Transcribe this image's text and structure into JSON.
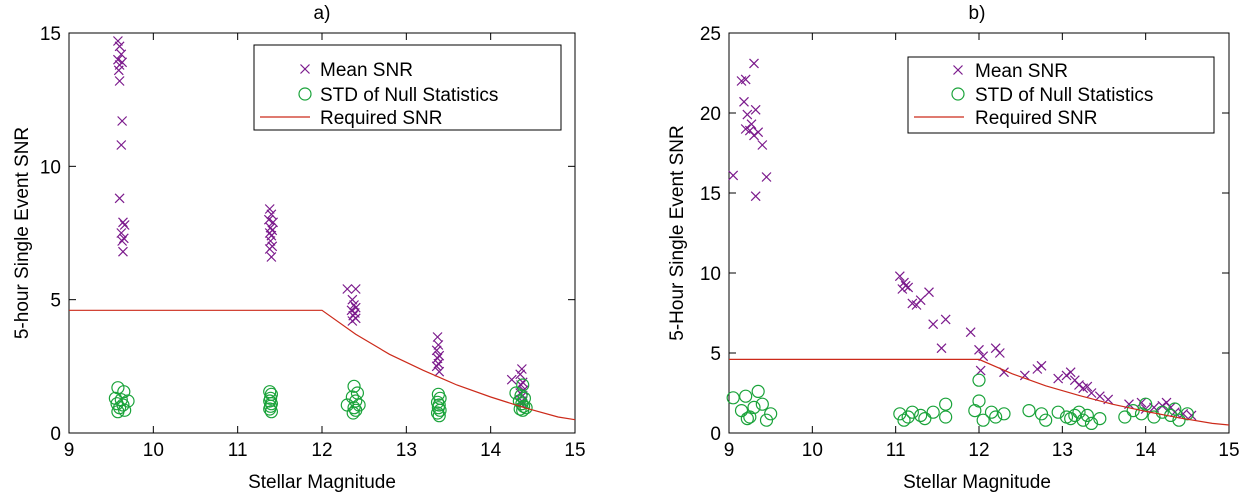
{
  "colors": {
    "mean": "#7b1a8c",
    "std": "#1aa33a",
    "req": "#cc2a1a"
  },
  "chart_data": [
    {
      "type": "scatter",
      "title": "a)",
      "xlabel": "Stellar Magnitude",
      "ylabel": "5-hour Single Event SNR",
      "xlim": [
        9,
        15
      ],
      "ylim": [
        0,
        15
      ],
      "xticks": [
        9,
        10,
        11,
        12,
        13,
        14,
        15
      ],
      "yticks": [
        0,
        5,
        10,
        15
      ],
      "grid": false,
      "legend_position": "top-right",
      "series": [
        {
          "name": "Mean SNR",
          "marker": "x",
          "points": [
            [
              9.58,
              14.7
            ],
            [
              9.6,
              14.5
            ],
            [
              9.62,
              14.2
            ],
            [
              9.58,
              14.0
            ],
            [
              9.6,
              13.8
            ],
            [
              9.63,
              13.9
            ],
            [
              9.59,
              13.6
            ],
            [
              9.6,
              13.2
            ],
            [
              9.63,
              11.7
            ],
            [
              9.62,
              10.8
            ],
            [
              9.6,
              8.8
            ],
            [
              9.64,
              7.9
            ],
            [
              9.66,
              7.8
            ],
            [
              9.62,
              7.5
            ],
            [
              9.65,
              7.3
            ],
            [
              9.63,
              7.2
            ],
            [
              9.64,
              6.8
            ],
            [
              11.38,
              8.4
            ],
            [
              11.4,
              8.2
            ],
            [
              11.37,
              8.0
            ],
            [
              11.42,
              7.9
            ],
            [
              11.39,
              7.7
            ],
            [
              11.41,
              7.6
            ],
            [
              11.38,
              7.5
            ],
            [
              11.4,
              7.4
            ],
            [
              11.39,
              7.2
            ],
            [
              11.41,
              7.0
            ],
            [
              11.38,
              6.9
            ],
            [
              11.4,
              6.6
            ],
            [
              12.3,
              5.4
            ],
            [
              12.4,
              5.4
            ],
            [
              12.36,
              5.0
            ],
            [
              12.38,
              4.8
            ],
            [
              12.4,
              4.7
            ],
            [
              12.35,
              4.6
            ],
            [
              12.39,
              4.5
            ],
            [
              12.37,
              4.4
            ],
            [
              12.4,
              4.3
            ],
            [
              12.36,
              4.2
            ],
            [
              13.37,
              3.6
            ],
            [
              13.38,
              3.3
            ],
            [
              13.36,
              3.1
            ],
            [
              13.39,
              2.9
            ],
            [
              13.37,
              2.8
            ],
            [
              13.38,
              2.6
            ],
            [
              13.36,
              2.5
            ],
            [
              13.39,
              2.3
            ],
            [
              14.25,
              2.0
            ],
            [
              14.37,
              2.4
            ],
            [
              14.35,
              2.2
            ],
            [
              14.38,
              1.9
            ],
            [
              14.36,
              1.8
            ],
            [
              14.39,
              1.6
            ],
            [
              14.35,
              1.5
            ],
            [
              14.38,
              1.4
            ],
            [
              14.37,
              1.2
            ],
            [
              14.36,
              1.1
            ]
          ]
        },
        {
          "name": "STD of Null Statistics",
          "marker": "o",
          "points": [
            [
              9.58,
              1.7
            ],
            [
              9.65,
              1.55
            ],
            [
              9.55,
              1.3
            ],
            [
              9.62,
              1.25
            ],
            [
              9.7,
              1.2
            ],
            [
              9.57,
              1.1
            ],
            [
              9.64,
              1.05
            ],
            [
              9.6,
              0.95
            ],
            [
              9.66,
              0.85
            ],
            [
              9.58,
              0.8
            ],
            [
              11.38,
              1.55
            ],
            [
              11.4,
              1.45
            ],
            [
              11.39,
              1.3
            ],
            [
              11.38,
              1.2
            ],
            [
              11.4,
              1.1
            ],
            [
              11.39,
              1.0
            ],
            [
              11.38,
              0.9
            ],
            [
              11.4,
              0.8
            ],
            [
              12.38,
              1.75
            ],
            [
              12.42,
              1.5
            ],
            [
              12.36,
              1.35
            ],
            [
              12.4,
              1.2
            ],
            [
              12.3,
              1.05
            ],
            [
              12.44,
              1.05
            ],
            [
              12.38,
              0.95
            ],
            [
              12.4,
              0.85
            ],
            [
              12.37,
              0.75
            ],
            [
              13.38,
              1.45
            ],
            [
              13.4,
              1.3
            ],
            [
              13.37,
              1.15
            ],
            [
              13.39,
              1.05
            ],
            [
              13.38,
              0.95
            ],
            [
              13.4,
              0.85
            ],
            [
              13.37,
              0.75
            ],
            [
              13.39,
              0.65
            ],
            [
              14.3,
              1.5
            ],
            [
              14.38,
              1.8
            ],
            [
              14.36,
              1.4
            ],
            [
              14.4,
              1.3
            ],
            [
              14.34,
              1.2
            ],
            [
              14.37,
              1.1
            ],
            [
              14.39,
              1.0
            ],
            [
              14.35,
              0.9
            ],
            [
              14.38,
              0.85
            ],
            [
              14.42,
              0.95
            ]
          ]
        },
        {
          "name": "Required SNR",
          "marker": "line",
          "points": [
            [
              9.0,
              4.6
            ],
            [
              12.0,
              4.6
            ],
            [
              12.4,
              3.7
            ],
            [
              12.8,
              2.95
            ],
            [
              13.2,
              2.35
            ],
            [
              13.6,
              1.8
            ],
            [
              14.0,
              1.35
            ],
            [
              14.4,
              0.95
            ],
            [
              14.8,
              0.6
            ],
            [
              15.0,
              0.5
            ]
          ]
        }
      ]
    },
    {
      "type": "scatter",
      "title": "b)",
      "xlabel": "Stellar Magnitude",
      "ylabel": "5-Hour Single Event SNR",
      "xlim": [
        9,
        15
      ],
      "ylim": [
        0,
        25
      ],
      "xticks": [
        9,
        10,
        11,
        12,
        13,
        14,
        15
      ],
      "yticks": [
        0,
        5,
        10,
        15,
        20,
        25
      ],
      "grid": false,
      "legend_position": "top-right",
      "series": [
        {
          "name": "Mean SNR",
          "marker": "x",
          "points": [
            [
              9.05,
              16.1
            ],
            [
              9.15,
              22.0
            ],
            [
              9.2,
              22.1
            ],
            [
              9.3,
              23.1
            ],
            [
              9.18,
              20.7
            ],
            [
              9.22,
              19.9
            ],
            [
              9.27,
              19.3
            ],
            [
              9.32,
              20.2
            ],
            [
              9.25,
              18.9
            ],
            [
              9.2,
              19.0
            ],
            [
              9.3,
              18.6
            ],
            [
              9.35,
              18.8
            ],
            [
              9.4,
              18.0
            ],
            [
              9.32,
              14.8
            ],
            [
              9.45,
              16.0
            ],
            [
              11.05,
              9.8
            ],
            [
              11.1,
              9.4
            ],
            [
              11.12,
              9.2
            ],
            [
              11.15,
              9.1
            ],
            [
              11.08,
              9.0
            ],
            [
              11.2,
              8.1
            ],
            [
              11.25,
              8.0
            ],
            [
              11.3,
              8.3
            ],
            [
              11.4,
              8.8
            ],
            [
              11.45,
              6.8
            ],
            [
              11.6,
              7.1
            ],
            [
              11.55,
              5.3
            ],
            [
              11.9,
              6.3
            ],
            [
              12.0,
              5.2
            ],
            [
              12.05,
              4.8
            ],
            [
              12.2,
              5.3
            ],
            [
              12.25,
              5.0
            ],
            [
              12.02,
              3.9
            ],
            [
              12.3,
              3.8
            ],
            [
              12.55,
              3.6
            ],
            [
              12.7,
              4.0
            ],
            [
              12.75,
              4.2
            ],
            [
              12.95,
              3.4
            ],
            [
              13.05,
              3.6
            ],
            [
              13.1,
              3.8
            ],
            [
              13.15,
              3.3
            ],
            [
              13.2,
              3.0
            ],
            [
              13.25,
              2.8
            ],
            [
              13.3,
              2.9
            ],
            [
              13.35,
              2.5
            ],
            [
              13.45,
              2.3
            ],
            [
              13.55,
              2.1
            ],
            [
              13.8,
              1.8
            ],
            [
              13.95,
              1.9
            ],
            [
              14.0,
              1.5
            ],
            [
              14.1,
              1.6
            ],
            [
              14.2,
              1.7
            ],
            [
              14.25,
              1.9
            ],
            [
              14.3,
              1.6
            ],
            [
              14.35,
              1.3
            ],
            [
              14.45,
              1.2
            ],
            [
              14.55,
              1.1
            ]
          ]
        },
        {
          "name": "STD of Null Statistics",
          "marker": "o",
          "points": [
            [
              9.05,
              2.2
            ],
            [
              9.15,
              1.4
            ],
            [
              9.2,
              2.3
            ],
            [
              9.25,
              1.0
            ],
            [
              9.3,
              1.6
            ],
            [
              9.35,
              2.6
            ],
            [
              9.4,
              1.8
            ],
            [
              9.45,
              0.8
            ],
            [
              9.5,
              1.2
            ],
            [
              9.22,
              0.9
            ],
            [
              11.05,
              1.2
            ],
            [
              11.1,
              0.8
            ],
            [
              11.15,
              1.0
            ],
            [
              11.2,
              1.3
            ],
            [
              11.3,
              1.1
            ],
            [
              11.35,
              0.9
            ],
            [
              11.45,
              1.3
            ],
            [
              11.6,
              1.8
            ],
            [
              11.6,
              1.0
            ],
            [
              11.95,
              1.4
            ],
            [
              12.0,
              2.0
            ],
            [
              12.0,
              3.3
            ],
            [
              12.05,
              0.8
            ],
            [
              12.15,
              1.3
            ],
            [
              12.2,
              1.0
            ],
            [
              12.3,
              1.2
            ],
            [
              12.6,
              1.4
            ],
            [
              12.75,
              1.2
            ],
            [
              12.8,
              0.8
            ],
            [
              12.95,
              1.3
            ],
            [
              13.05,
              1.0
            ],
            [
              13.1,
              0.9
            ],
            [
              13.15,
              1.1
            ],
            [
              13.2,
              1.3
            ],
            [
              13.25,
              0.8
            ],
            [
              13.3,
              1.1
            ],
            [
              13.35,
              0.6
            ],
            [
              13.45,
              0.9
            ],
            [
              13.75,
              1.0
            ],
            [
              13.85,
              1.4
            ],
            [
              13.95,
              1.2
            ],
            [
              14.0,
              1.8
            ],
            [
              14.1,
              1.0
            ],
            [
              14.2,
              1.3
            ],
            [
              14.3,
              1.1
            ],
            [
              14.35,
              1.5
            ],
            [
              14.4,
              0.8
            ],
            [
              14.5,
              1.2
            ]
          ]
        },
        {
          "name": "Required SNR",
          "marker": "line",
          "points": [
            [
              9.0,
              4.6
            ],
            [
              12.0,
              4.6
            ],
            [
              12.4,
              3.7
            ],
            [
              12.8,
              2.95
            ],
            [
              13.2,
              2.35
            ],
            [
              13.6,
              1.8
            ],
            [
              14.0,
              1.35
            ],
            [
              14.4,
              0.95
            ],
            [
              14.8,
              0.6
            ],
            [
              15.0,
              0.5
            ]
          ]
        }
      ]
    }
  ]
}
